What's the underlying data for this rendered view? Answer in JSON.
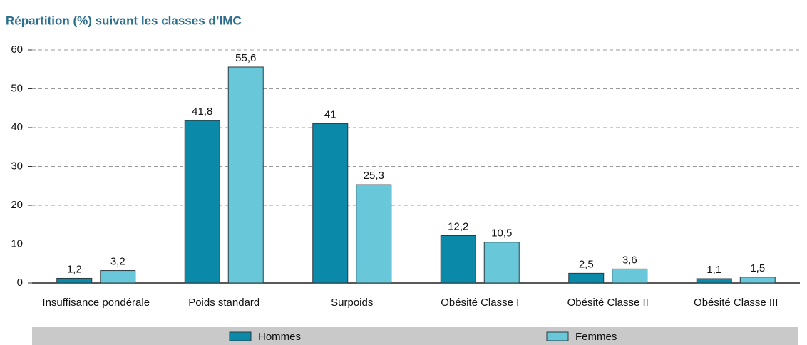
{
  "chart_data": {
    "type": "bar",
    "title": "Répartition (%) suivant les classes d’IMC",
    "categories": [
      "Insuffisance pondérale",
      "Poids standard",
      "Surpoids",
      "Obésité Classe I",
      "Obésité Classe II",
      "Obésité Classe III"
    ],
    "series": [
      {
        "name": "Hommes",
        "color": "#0b89a8",
        "values": [
          1.2,
          41.8,
          41,
          12.2,
          2.5,
          1.1
        ],
        "value_labels": [
          "1,2",
          "41,8",
          "41",
          "12,2",
          "2,5",
          "1,1"
        ]
      },
      {
        "name": "Femmes",
        "color": "#68c7d9",
        "values": [
          3.2,
          55.6,
          25.3,
          10.5,
          3.6,
          1.5
        ],
        "value_labels": [
          "3,2",
          "55,6",
          "25,3",
          "10,5",
          "3,6",
          "1,5"
        ]
      }
    ],
    "ylim": [
      0,
      60
    ],
    "yticks": [
      0,
      10,
      20,
      30,
      40,
      50,
      60
    ],
    "grid": true,
    "legend": "bottom"
  }
}
